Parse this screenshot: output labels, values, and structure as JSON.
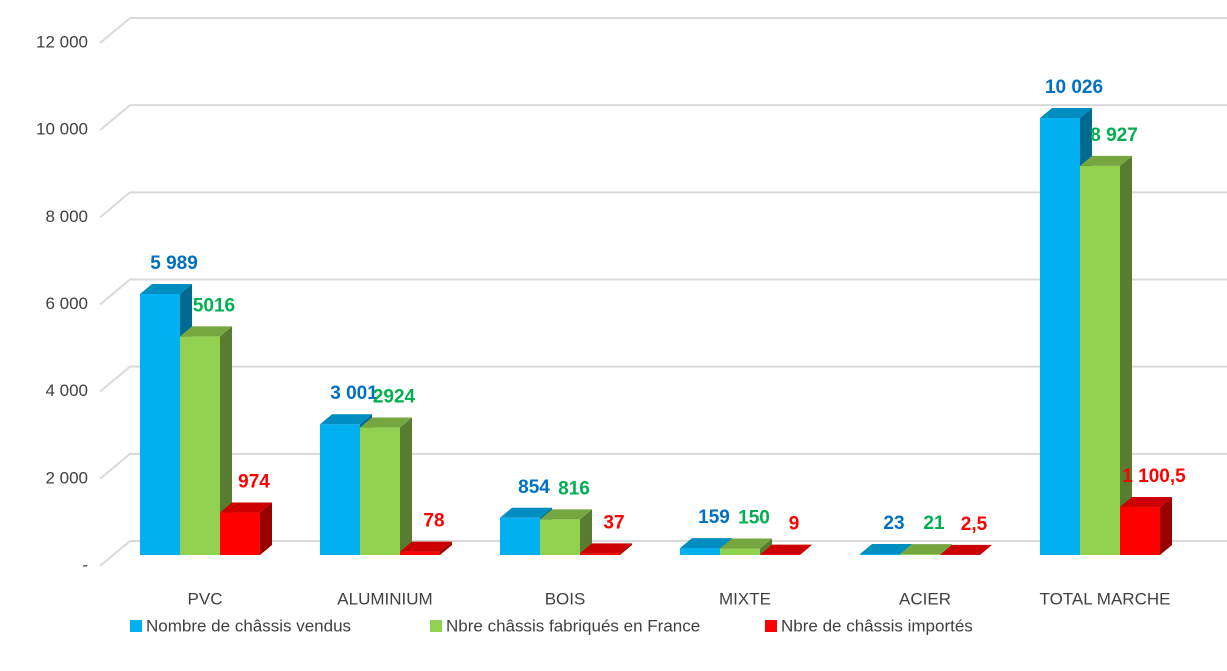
{
  "chart_data": {
    "type": "bar3d",
    "categories": [
      "PVC",
      "ALUMINIUM",
      "BOIS",
      "MIXTE",
      "ACIER",
      "TOTAL MARCHE"
    ],
    "series": [
      {
        "name": "Nombre de châssis vendus",
        "color": "#00b0f0",
        "label_color": "#0070c0",
        "values": [
          5989,
          3001,
          854,
          159,
          23,
          10026
        ],
        "value_labels": [
          "5 989",
          "3 001",
          "854",
          "159",
          "23",
          "10 026"
        ]
      },
      {
        "name": "Nbre châssis fabriqués en France",
        "color": "#92d050",
        "label_color": "#00b050",
        "values": [
          5016,
          2924,
          816,
          150,
          21,
          8927
        ],
        "value_labels": [
          "5016",
          "2924",
          "816",
          "150",
          "21",
          "8 927"
        ]
      },
      {
        "name": "Nbre de châssis importés",
        "color": "#ff0000",
        "label_color": "#ff0000",
        "values": [
          974,
          78,
          37,
          9,
          2.5,
          1100.5
        ],
        "value_labels": [
          "974",
          "78",
          "37",
          "9",
          "2,5",
          "1 100,5"
        ]
      }
    ],
    "ylim": [
      0,
      12000
    ],
    "yticks": [
      {
        "value": 0,
        "label": "-"
      },
      {
        "value": 2000,
        "label": "2 000"
      },
      {
        "value": 4000,
        "label": "4 000"
      },
      {
        "value": 6000,
        "label": "6 000"
      },
      {
        "value": 8000,
        "label": "8 000"
      },
      {
        "value": 10000,
        "label": "10 000"
      },
      {
        "value": 12000,
        "label": "12 000"
      }
    ],
    "grid": true,
    "legend": "bottom"
  }
}
